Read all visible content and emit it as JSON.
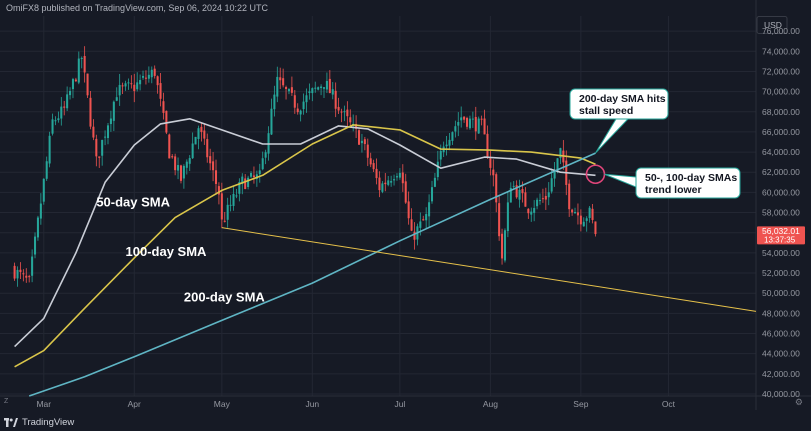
{
  "header": {
    "publisher_text": "OmiFX8 published on TradingView.com, Sep 06, 2024 10:22 UTC"
  },
  "footer": {
    "brand": "TradingView",
    "zoom_label": "Z"
  },
  "colors": {
    "background": "#161a25",
    "grid": "#232733",
    "up": "#26a69a",
    "down": "#ef5350",
    "sma50": "#c9cdd6",
    "sma100": "#d9c54a",
    "sma200": "#5fb5c4",
    "trendline": "#e6c14a",
    "callout_border": "#26a69a",
    "marker": "#e0457a"
  },
  "chart_data": {
    "type": "candlestick",
    "currency": "USD",
    "x_axis_labels": [
      "Mar",
      "Apr",
      "May",
      "Jun",
      "Jul",
      "Aug",
      "Sep",
      "Oct"
    ],
    "x_axis_dates": [
      "2024-03-01",
      "2024-04-01",
      "2024-05-01",
      "2024-06-01",
      "2024-07-01",
      "2024-08-01",
      "2024-09-01",
      "2024-10-01"
    ],
    "x_range": [
      "2024-02-15",
      "2024-10-31"
    ],
    "y_range": [
      39800,
      77500
    ],
    "y_ticks": [
      40000,
      42000,
      44000,
      46000,
      48000,
      50000,
      52000,
      54000,
      56000,
      58000,
      60000,
      62000,
      64000,
      66000,
      68000,
      70000,
      72000,
      74000,
      76000
    ],
    "y_tick_labels": [
      "40,000.00",
      "42,000.00",
      "44,000.00",
      "46,000.00",
      "48,000.00",
      "50,000.00",
      "52,000.00",
      "54,000.00",
      "56,000.00",
      "58,000.00",
      "60,000.00",
      "62,000.00",
      "64,000.00",
      "66,000.00",
      "68,000.00",
      "70,000.00",
      "72,000.00",
      "74,000.00",
      "76,000.00"
    ],
    "price_path": [
      [
        "2024-02-20",
        52200
      ],
      [
        "2024-02-25",
        51000
      ],
      [
        "2024-02-28",
        57000
      ],
      [
        "2024-03-04",
        67000
      ],
      [
        "2024-03-08",
        68200
      ],
      [
        "2024-03-14",
        73400
      ],
      [
        "2024-03-19",
        63000
      ],
      [
        "2024-03-26",
        70000
      ],
      [
        "2024-04-01",
        70500
      ],
      [
        "2024-04-08",
        72000
      ],
      [
        "2024-04-13",
        64000
      ],
      [
        "2024-04-17",
        61300
      ],
      [
        "2024-04-23",
        66500
      ],
      [
        "2024-04-30",
        60000
      ],
      [
        "2024-05-01",
        57000
      ],
      [
        "2024-05-08",
        61000
      ],
      [
        "2024-05-14",
        61500
      ],
      [
        "2024-05-20",
        71000
      ],
      [
        "2024-05-27",
        68500
      ],
      [
        "2024-06-05",
        71000
      ],
      [
        "2024-06-12",
        67500
      ],
      [
        "2024-06-18",
        65000
      ],
      [
        "2024-06-24",
        60500
      ],
      [
        "2024-07-01",
        62500
      ],
      [
        "2024-07-05",
        55500
      ],
      [
        "2024-07-10",
        57500
      ],
      [
        "2024-07-16",
        65000
      ],
      [
        "2024-07-22",
        67500
      ],
      [
        "2024-07-29",
        66500
      ],
      [
        "2024-08-02",
        61500
      ],
      [
        "2024-08-05",
        53500
      ],
      [
        "2024-08-08",
        61000
      ],
      [
        "2024-08-14",
        58500
      ],
      [
        "2024-08-20",
        59500
      ],
      [
        "2024-08-25",
        64000
      ],
      [
        "2024-08-28",
        59000
      ],
      [
        "2024-09-01",
        57500
      ],
      [
        "2024-09-04",
        57900
      ],
      [
        "2024-09-06",
        56032
      ]
    ],
    "series": [
      {
        "name": "50-day SMA",
        "points": [
          [
            "2024-02-20",
            44700
          ],
          [
            "2024-03-01",
            47500
          ],
          [
            "2024-03-12",
            54000
          ],
          [
            "2024-03-22",
            61000
          ],
          [
            "2024-04-01",
            64700
          ],
          [
            "2024-04-10",
            66800
          ],
          [
            "2024-04-20",
            67300
          ],
          [
            "2024-05-01",
            66200
          ],
          [
            "2024-05-15",
            64800
          ],
          [
            "2024-05-28",
            64800
          ],
          [
            "2024-06-10",
            66600
          ],
          [
            "2024-06-20",
            66300
          ],
          [
            "2024-07-01",
            64700
          ],
          [
            "2024-07-15",
            62400
          ],
          [
            "2024-07-30",
            63500
          ],
          [
            "2024-08-10",
            63300
          ],
          [
            "2024-08-25",
            62000
          ],
          [
            "2024-09-06",
            61700
          ]
        ]
      },
      {
        "name": "100-day SMA",
        "points": [
          [
            "2024-02-20",
            42700
          ],
          [
            "2024-03-01",
            44300
          ],
          [
            "2024-03-15",
            48500
          ],
          [
            "2024-04-01",
            53500
          ],
          [
            "2024-04-15",
            57500
          ],
          [
            "2024-05-01",
            60200
          ],
          [
            "2024-05-15",
            61700
          ],
          [
            "2024-06-01",
            64800
          ],
          [
            "2024-06-15",
            66700
          ],
          [
            "2024-07-01",
            66200
          ],
          [
            "2024-07-15",
            64300
          ],
          [
            "2024-08-01",
            64200
          ],
          [
            "2024-08-15",
            64000
          ],
          [
            "2024-09-01",
            63400
          ],
          [
            "2024-09-06",
            62800
          ]
        ]
      },
      {
        "name": "200-day SMA",
        "points": [
          [
            "2024-02-25",
            39800
          ],
          [
            "2024-03-15",
            41700
          ],
          [
            "2024-04-01",
            43700
          ],
          [
            "2024-05-01",
            47300
          ],
          [
            "2024-06-01",
            51000
          ],
          [
            "2024-07-01",
            55200
          ],
          [
            "2024-08-01",
            59300
          ],
          [
            "2024-09-06",
            63900
          ]
        ]
      }
    ],
    "trendline": {
      "start": [
        "2024-05-01",
        56500
      ],
      "end": [
        "2024-10-31",
        48200
      ]
    },
    "last_price_label": {
      "price": "56,032.01",
      "countdown": "13:37:35",
      "value": 56032
    },
    "series_labels": [
      {
        "text": "50-day SMA",
        "anchor": [
          "2024-03-19",
          58600
        ]
      },
      {
        "text": "100-day SMA",
        "anchor": [
          "2024-03-29",
          53700
        ]
      },
      {
        "text": "200-day SMA",
        "anchor": [
          "2024-04-18",
          49200
        ]
      }
    ],
    "annotations": [
      {
        "lines": [
          "200-day SMA hits",
          "stall speed"
        ],
        "target": [
          "2024-09-06",
          63900
        ]
      },
      {
        "lines": [
          "50-, 100-day SMAs",
          "trend lower"
        ],
        "target": [
          "2024-09-06",
          61800
        ]
      }
    ]
  }
}
